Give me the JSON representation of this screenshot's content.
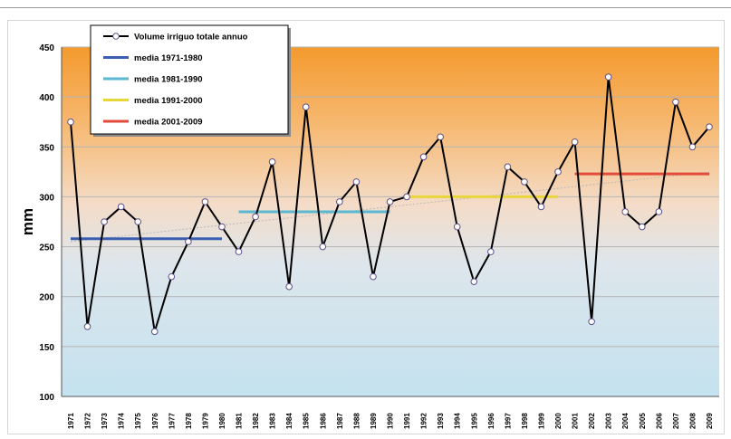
{
  "chart_data": {
    "type": "line",
    "ylabel": "mm",
    "ylim": [
      100,
      450
    ],
    "yticks": [
      100,
      150,
      200,
      250,
      300,
      350,
      400,
      450
    ],
    "grid": true,
    "legend_position": "top-left",
    "categories": [
      "1971",
      "1972",
      "1973",
      "1974",
      "1975",
      "1976",
      "1977",
      "1978",
      "1979",
      "1980",
      "1981",
      "1982",
      "1983",
      "1984",
      "1985",
      "1986",
      "1987",
      "1988",
      "1989",
      "1990",
      "1991",
      "1992",
      "1993",
      "1994",
      "1995",
      "1996",
      "1997",
      "1998",
      "1999",
      "2000",
      "2001",
      "2002",
      "2003",
      "2004",
      "2005",
      "2006",
      "2007",
      "2008",
      "2009"
    ],
    "series": [
      {
        "name": "Volume irriguo totale annuo",
        "color": "#000000",
        "values": [
          375,
          170,
          275,
          290,
          275,
          165,
          220,
          255,
          295,
          270,
          245,
          280,
          335,
          210,
          390,
          250,
          295,
          315,
          220,
          295,
          300,
          340,
          360,
          270,
          215,
          245,
          330,
          315,
          290,
          325,
          355,
          175,
          420,
          285,
          270,
          285,
          395,
          350,
          370
        ]
      }
    ],
    "means": [
      {
        "name": "media 1971-1980",
        "color": "#3a5fb0",
        "value": 258,
        "from": "1971",
        "to": "1980"
      },
      {
        "name": "media 1981-1990",
        "color": "#5ab8d0",
        "value": 285,
        "from": "1981",
        "to": "1990"
      },
      {
        "name": "media 1991-2000",
        "color": "#e8d63a",
        "value": 300,
        "from": "1991",
        "to": "2000"
      },
      {
        "name": "media 2001-2009",
        "color": "#e24b3a",
        "value": 323,
        "from": "2001",
        "to": "2009"
      }
    ],
    "trend": {
      "start": 255,
      "end": 325
    }
  }
}
